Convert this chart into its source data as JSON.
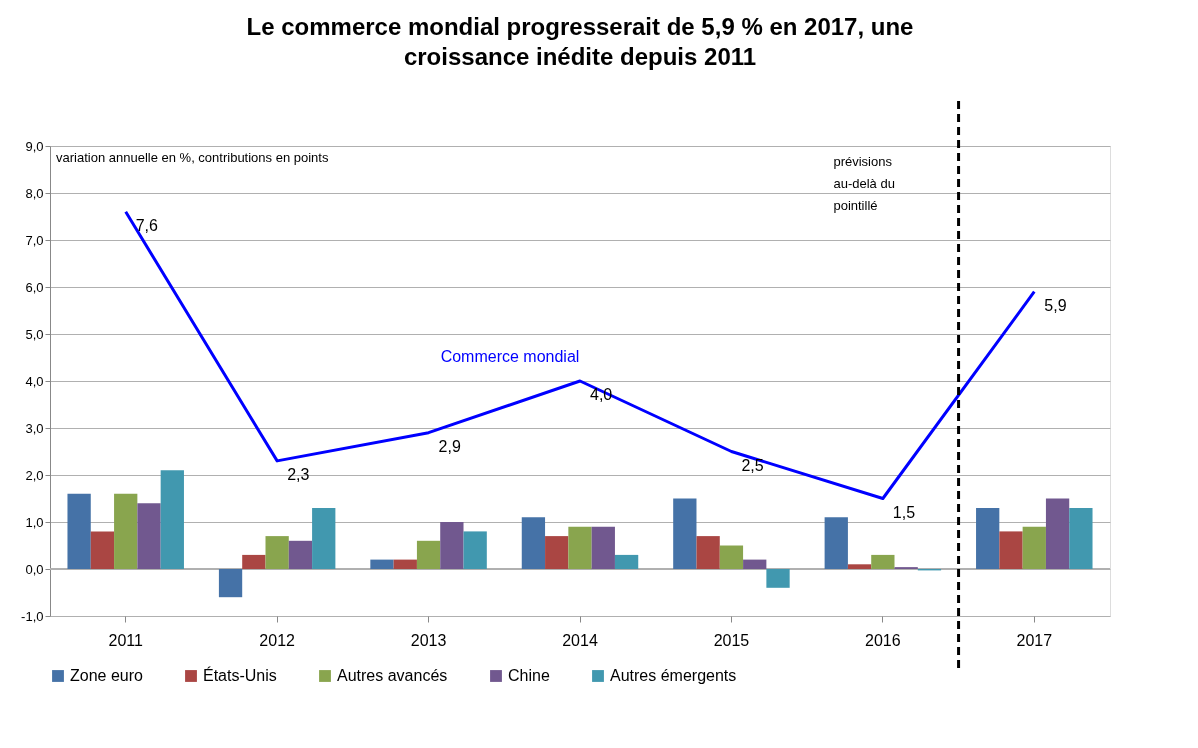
{
  "chart_data": {
    "type": "bar",
    "title": "Le commerce mondial progresserait de 5,9 % en 2017, une croissance inédite depuis 2011",
    "categories": [
      "2011",
      "2012",
      "2013",
      "2014",
      "2015",
      "2016",
      "2017"
    ],
    "series": [
      {
        "name": "Zone euro",
        "color": "#4572a7",
        "values": [
          1.6,
          -0.6,
          0.2,
          1.1,
          1.5,
          1.1,
          1.3
        ]
      },
      {
        "name": "États-Unis",
        "color": "#aa4643",
        "values": [
          0.8,
          0.3,
          0.2,
          0.7,
          0.7,
          0.1,
          0.8
        ]
      },
      {
        "name": "Autres avancés",
        "color": "#89a54e",
        "values": [
          1.6,
          0.7,
          0.6,
          0.9,
          0.5,
          0.3,
          0.9
        ]
      },
      {
        "name": "Chine",
        "color": "#71588f",
        "values": [
          1.4,
          0.6,
          1.0,
          0.9,
          0.2,
          0.04,
          1.5
        ]
      },
      {
        "name": "Autres émergents",
        "color": "#4198af",
        "values": [
          2.1,
          1.3,
          0.8,
          0.3,
          -0.4,
          -0.03,
          1.3
        ]
      },
      {
        "name": "Commerce mondial",
        "type": "line",
        "color": "#0000ff",
        "values": [
          7.6,
          2.3,
          2.9,
          4.0,
          2.5,
          1.5,
          5.9
        ],
        "value_labels": [
          "7,6",
          "2,3",
          "2,9",
          "4,0",
          "2,5",
          "1,5",
          "5,9"
        ]
      }
    ],
    "ylim": [
      -1,
      9
    ],
    "yticks": [
      {
        "value": -1,
        "label": "-1,0"
      },
      {
        "value": 0,
        "label": "0,0"
      },
      {
        "value": 1,
        "label": "1,0"
      },
      {
        "value": 2,
        "label": "2,0"
      },
      {
        "value": 3,
        "label": "3,0"
      },
      {
        "value": 4,
        "label": "4,0"
      },
      {
        "value": 5,
        "label": "5,0"
      },
      {
        "value": 6,
        "label": "6,0"
      },
      {
        "value": 7,
        "label": "7,0"
      },
      {
        "value": 8,
        "label": "8,0"
      },
      {
        "value": 9,
        "label": "9,0"
      }
    ],
    "grid": "y",
    "legend": "bottom",
    "ref_lines": [
      {
        "axis": "x",
        "value": "2017",
        "color": "#000000",
        "line_style": "dashed"
      }
    ],
    "annotations": [
      "variation annuelle en %, contributions en points",
      "prévisions au-delà du pointillé"
    ]
  }
}
